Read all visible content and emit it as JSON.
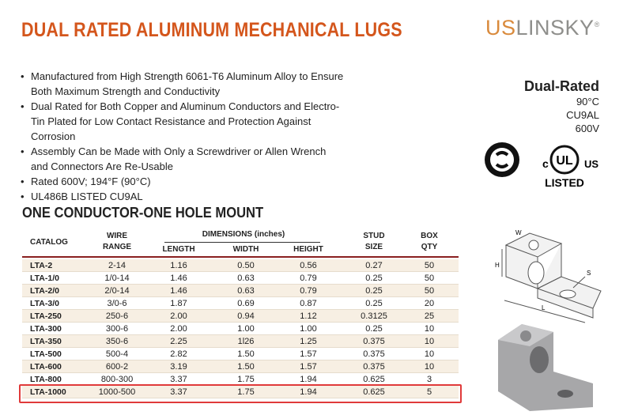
{
  "header": {
    "title": "DUAL RATED ALUMINUM MECHANICAL LUGS",
    "brand_prefix": "US",
    "brand_name": "LINSKY",
    "brand_mark": "®"
  },
  "features": [
    "Manufactured from High Strength 6061-T6 Aluminum Alloy to Ensure Both Maximum Strength and Conductivity",
    "Dual Rated for Both Copper and Aluminum Conductors and Electro-Tin Plated for Low Contact Resistance and Protection Against Corrosion",
    "Assembly Can be Made with Only a Screwdriver or Allen Wrench and Connectors Are Re-Usable",
    "Rated 600V; 194°F (90°C)",
    "UL486B LISTED CU9AL"
  ],
  "rating": {
    "title": "Dual-Rated",
    "lines": [
      "90°C",
      "CU9AL",
      "600V"
    ]
  },
  "certification": {
    "ul": "UL",
    "c": "c",
    "us": "US",
    "listed": "LISTED"
  },
  "table": {
    "title": "ONE CONDUCTOR-ONE HOLE MOUNT",
    "catalog": "CATALOG",
    "wire_range": "WIRE RANGE",
    "dimensions": "DIMENSIONS (inches)",
    "length": "LENGTH",
    "width": "WIDTH",
    "height": "HEIGHT",
    "stud_size": "STUD SIZE",
    "box_qty": "BOX QTY",
    "rows": [
      [
        "LTA-2",
        "2-14",
        "1.16",
        "0.50",
        "0.56",
        "0.27",
        "50"
      ],
      [
        "LTA-1/0",
        "1/0-14",
        "1.46",
        "0.63",
        "0.79",
        "0.25",
        "50"
      ],
      [
        "LTA-2/0",
        "2/0-14",
        "1.46",
        "0.63",
        "0.79",
        "0.25",
        "50"
      ],
      [
        "LTA-3/0",
        "3/0-6",
        "1.87",
        "0.69",
        "0.87",
        "0.25",
        "20"
      ],
      [
        "LTA-250",
        "250-6",
        "2.00",
        "0.94",
        "1.12",
        "0.3125",
        "25"
      ],
      [
        "LTA-300",
        "300-6",
        "2.00",
        "1.00",
        "1.00",
        "0.25",
        "10"
      ],
      [
        "LTA-350",
        "350-6",
        "2.25",
        "1l26",
        "1.25",
        "0.375",
        "10"
      ],
      [
        "LTA-500",
        "500-4",
        "2.82",
        "1.50",
        "1.57",
        "0.375",
        "10"
      ],
      [
        "LTA-600",
        "600-2",
        "3.19",
        "1.50",
        "1.57",
        "0.375",
        "10"
      ],
      [
        "LTA-800",
        "800-300",
        "3.37",
        "1.75",
        "1.94",
        "0.625",
        "3"
      ],
      [
        "LTA-1000",
        "1000-500",
        "3.37",
        "1.75",
        "1.94",
        "0.625",
        "5"
      ]
    ]
  },
  "diagram": {
    "w": "W",
    "h": "H",
    "l": "L",
    "s": "S"
  }
}
